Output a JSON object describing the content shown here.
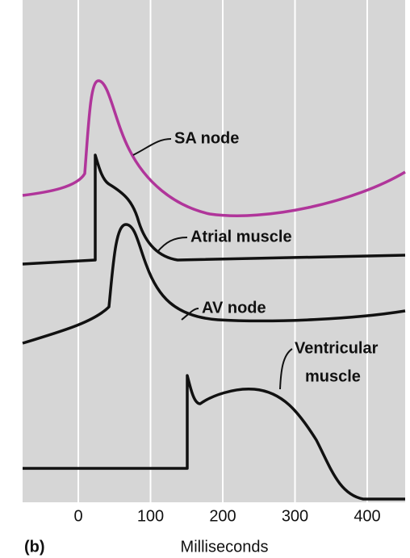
{
  "panel_label": "(b)",
  "x_axis": {
    "label": "Milliseconds",
    "ticks": [
      0,
      100,
      200,
      300,
      400
    ]
  },
  "curves": [
    {
      "label": [
        "SA node"
      ]
    },
    {
      "label": [
        "Atrial muscle"
      ]
    },
    {
      "label": [
        "AV node"
      ]
    },
    {
      "label": [
        "Ventricular",
        "muscle"
      ]
    }
  ]
}
